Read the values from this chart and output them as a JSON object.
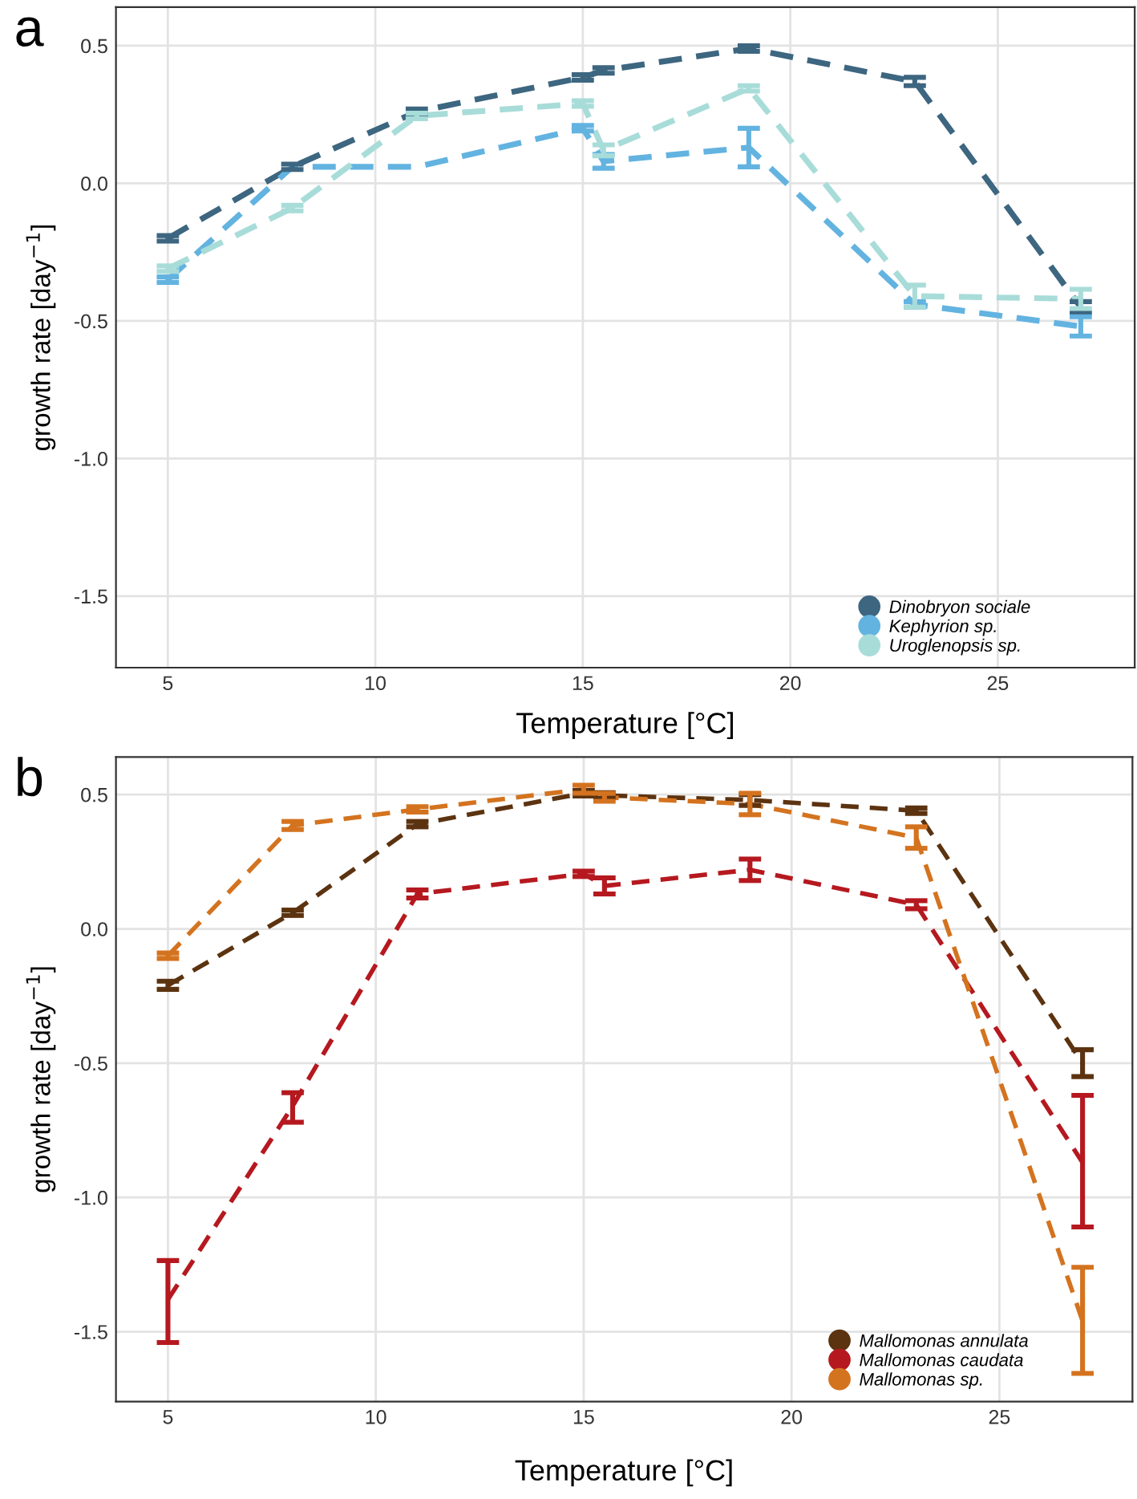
{
  "chart_data": [
    {
      "type": "line",
      "title": "a",
      "xlabel": "Temperature [°C]",
      "ylabel": "growth rate [day$^{−1}$]",
      "x": [
        5,
        8,
        11,
        15,
        15.5,
        19,
        23,
        27
      ],
      "series": [
        {
          "name": "Dinobryon sociale",
          "color": "#3d6680",
          "values": [
            -0.2,
            0.06,
            0.26,
            0.385,
            0.41,
            0.49,
            0.37,
            -0.45
          ],
          "errors": [
            0.01,
            0.01,
            0.01,
            0.01,
            0.01,
            0.01,
            0.015,
            0.02
          ]
        },
        {
          "name": "Kephyrion sp.",
          "color": "#63b3e0",
          "values": [
            -0.35,
            0.06,
            0.06,
            0.2,
            0.08,
            0.13,
            -0.44,
            -0.52
          ],
          "errors": [
            0.01,
            null,
            null,
            0.01,
            0.025,
            0.07,
            0.01,
            0.035
          ]
        },
        {
          "name": "Uroglenopsis sp.",
          "color": "#a8dcd9",
          "values": [
            -0.31,
            -0.09,
            0.245,
            0.29,
            0.12,
            0.345,
            -0.41,
            -0.42
          ],
          "errors": [
            0.01,
            0.01,
            0.01,
            0.01,
            0.02,
            0.01,
            0.04,
            0.035
          ]
        }
      ],
      "xlim": [
        3.75,
        28.3
      ],
      "ylim": [
        -1.76,
        0.64
      ],
      "xticks": [
        5,
        10,
        15,
        20,
        25
      ],
      "yticks": [
        {
          "value": -1.5,
          "label": "-1.5"
        },
        {
          "value": -1.0,
          "label": "-1.0"
        },
        {
          "value": -0.5,
          "label": "-0.5"
        },
        {
          "value": 0.0,
          "label": "0.0"
        },
        {
          "value": 0.5,
          "label": "0.5"
        }
      ],
      "grid": true,
      "legend": "bottom right",
      "line_style": "dashed"
    },
    {
      "type": "line",
      "title": "b",
      "xlabel": "Temperature [°C]",
      "ylabel": "growth rate [day$^{−1}$]",
      "x": [
        5,
        8,
        11,
        15,
        15.5,
        19,
        23,
        27
      ],
      "series": [
        {
          "name": "Mallomonas annulata",
          "color": "#5c3310",
          "values": [
            -0.21,
            0.06,
            0.39,
            0.505,
            0.497,
            0.48,
            0.44,
            -0.5
          ],
          "errors": [
            0.015,
            0.01,
            0.01,
            0.01,
            0.01,
            0.02,
            0.01,
            0.05
          ]
        },
        {
          "name": "Mallomonas caudata",
          "color": "#b5191f",
          "values": [
            -1.38,
            -0.66,
            0.13,
            0.205,
            0.16,
            0.22,
            0.09,
            -0.87
          ],
          "errors": [
            [
              -1.54,
              -1.235
            ],
            [
              -0.72,
              -0.61
            ],
            0.015,
            0.01,
            0.03,
            0.04,
            0.015,
            [
              -1.11,
              -0.62
            ]
          ]
        },
        {
          "name": "Mallomonas sp.",
          "color": "#d4731f",
          "values": [
            -0.1,
            0.385,
            0.445,
            0.52,
            0.49,
            0.465,
            0.34,
            -1.46
          ],
          "errors": [
            0.01,
            0.015,
            0.01,
            0.015,
            0.015,
            0.04,
            [
              0.3,
              0.38
            ],
            [
              -1.655,
              -1.26
            ]
          ]
        }
      ],
      "xlim": [
        3.75,
        28.2
      ],
      "ylim": [
        -1.76,
        0.64
      ],
      "xticks": [
        5,
        10,
        15,
        20,
        25
      ],
      "yticks": [
        {
          "value": -1.5,
          "label": "-1.5"
        },
        {
          "value": -1.0,
          "label": "-1.0"
        },
        {
          "value": -0.5,
          "label": "-0.5"
        },
        {
          "value": 0.0,
          "label": "0.0"
        },
        {
          "value": 0.5,
          "label": "0.5"
        }
      ],
      "grid": true,
      "legend": "bottom right",
      "line_style": "dashed"
    }
  ]
}
